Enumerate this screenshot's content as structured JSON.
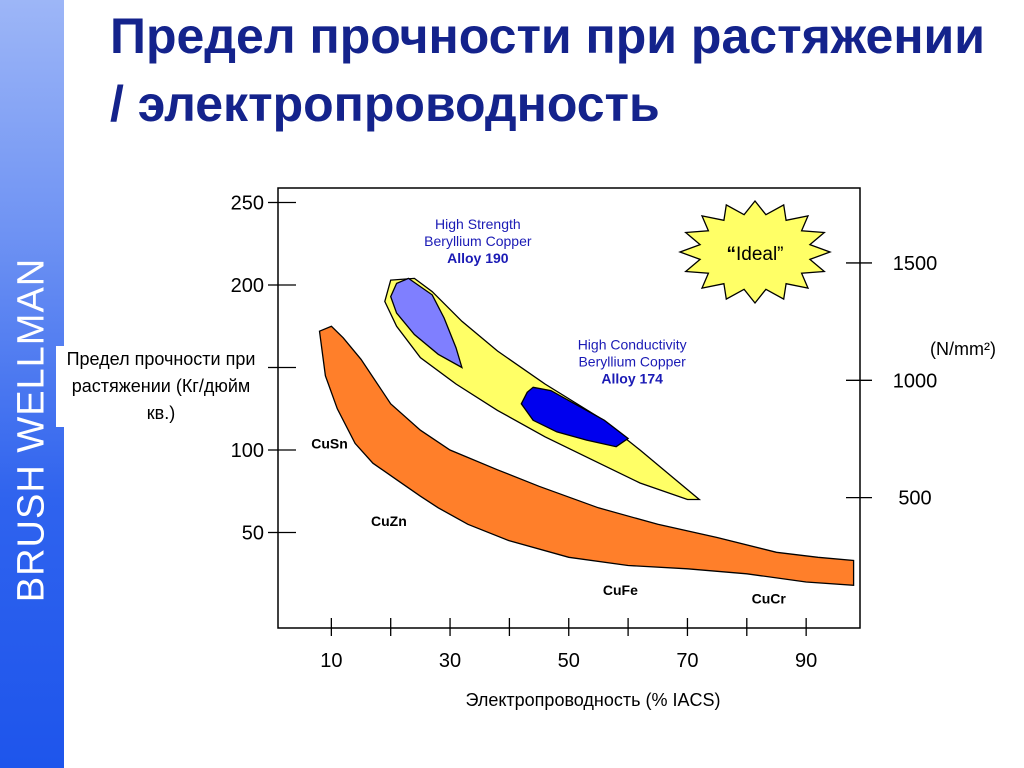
{
  "side_bar": {
    "brand": "BRUSH WELLMAN"
  },
  "slide": {
    "title": "Предел прочности при растяжении / электропроводность"
  },
  "chart_data": {
    "type": "area",
    "title": "Предел прочности при растяжении / электропроводность",
    "xlabel": "Электропроводность (% IACS)",
    "ylabel": "Предел прочности при растяжении (Кг/дюйм кв.)",
    "xlim": [
      0,
      100
    ],
    "ylim": [
      0,
      250
    ],
    "x_ticks": [
      10,
      30,
      50,
      70,
      90
    ],
    "y_ticks_left": [
      {
        "value": 50,
        "label": "50"
      },
      {
        "value": 100,
        "label": "100"
      },
      {
        "value": 150,
        "label": ""
      },
      {
        "value": 200,
        "label": "200"
      },
      {
        "value": 250,
        "label": "250"
      }
    ],
    "y_ticks_right": [
      {
        "value": 500,
        "label": "500"
      },
      {
        "value": 1000,
        "label": "1000"
      },
      {
        "value": 1500,
        "label": "1500"
      }
    ],
    "y_right_unit": "(N/mm²)",
    "y_right_factor": 7.03,
    "grid": false,
    "regions": [
      {
        "name": "CuSn-CuZn-CuFe-CuCr",
        "color": "#ff7f2a",
        "outline": [
          [
            8,
            172
          ],
          [
            10,
            175
          ],
          [
            12,
            168
          ],
          [
            15,
            155
          ],
          [
            20,
            128
          ],
          [
            25,
            112
          ],
          [
            30,
            100
          ],
          [
            38,
            88
          ],
          [
            45,
            78
          ],
          [
            55,
            65
          ],
          [
            65,
            55
          ],
          [
            75,
            47
          ],
          [
            85,
            38
          ],
          [
            92,
            35
          ],
          [
            98,
            33
          ],
          [
            98,
            18
          ],
          [
            90,
            20
          ],
          [
            80,
            25
          ],
          [
            70,
            28
          ],
          [
            60,
            30
          ],
          [
            50,
            35
          ],
          [
            40,
            45
          ],
          [
            33,
            55
          ],
          [
            28,
            65
          ],
          [
            25,
            72
          ],
          [
            21,
            82
          ],
          [
            17,
            92
          ],
          [
            14,
            104
          ],
          [
            11,
            125
          ],
          [
            9,
            145
          ],
          [
            8,
            172
          ]
        ]
      },
      {
        "name": "Beryllium Copper band",
        "color": "#ffff66",
        "outline": [
          [
            20,
            203
          ],
          [
            24,
            204
          ],
          [
            27,
            196
          ],
          [
            32,
            178
          ],
          [
            38,
            160
          ],
          [
            46,
            140
          ],
          [
            55,
            120
          ],
          [
            62,
            100
          ],
          [
            68,
            82
          ],
          [
            72,
            70
          ],
          [
            70,
            70
          ],
          [
            62,
            80
          ],
          [
            54,
            94
          ],
          [
            46,
            108
          ],
          [
            38,
            124
          ],
          [
            31,
            140
          ],
          [
            25,
            156
          ],
          [
            21,
            175
          ],
          [
            19,
            190
          ],
          [
            20,
            203
          ]
        ]
      },
      {
        "name": "Alloy 190",
        "color": "#7f7fff",
        "outline": [
          [
            23,
            204
          ],
          [
            27,
            194
          ],
          [
            29,
            180
          ],
          [
            31,
            162
          ],
          [
            32,
            150
          ],
          [
            28,
            158
          ],
          [
            24,
            170
          ],
          [
            21,
            183
          ],
          [
            20,
            193
          ],
          [
            21,
            201
          ],
          [
            23,
            204
          ]
        ]
      },
      {
        "name": "Alloy 174",
        "color": "#0000ee",
        "outline": [
          [
            44,
            138
          ],
          [
            47,
            136
          ],
          [
            51,
            128
          ],
          [
            56,
            118
          ],
          [
            60,
            107
          ],
          [
            58,
            102
          ],
          [
            53,
            106
          ],
          [
            48,
            111
          ],
          [
            44,
            118
          ],
          [
            42,
            128
          ],
          [
            43,
            135
          ],
          [
            44,
            138
          ]
        ]
      }
    ],
    "region_labels": [
      {
        "text": "CuSn",
        "x": 7,
        "y": 101
      },
      {
        "text": "CuZn",
        "x": 17,
        "y": 54
      },
      {
        "text": "CuFe",
        "x": 56,
        "y": 12
      },
      {
        "text": "CuCr",
        "x": 81,
        "y": 7
      }
    ],
    "annotations": [
      {
        "id": "hs",
        "lines": [
          "High Strength",
          "Beryllium Copper"
        ],
        "bold": "Alloy 190",
        "x": 33,
        "y": 234
      },
      {
        "id": "hc",
        "lines": [
          "High Conductivity",
          "Beryllium Copper"
        ],
        "bold": "Alloy 174",
        "x": 59,
        "y": 161
      }
    ],
    "ideal": {
      "text": "Ideal",
      "x": 82,
      "y": 212
    }
  }
}
